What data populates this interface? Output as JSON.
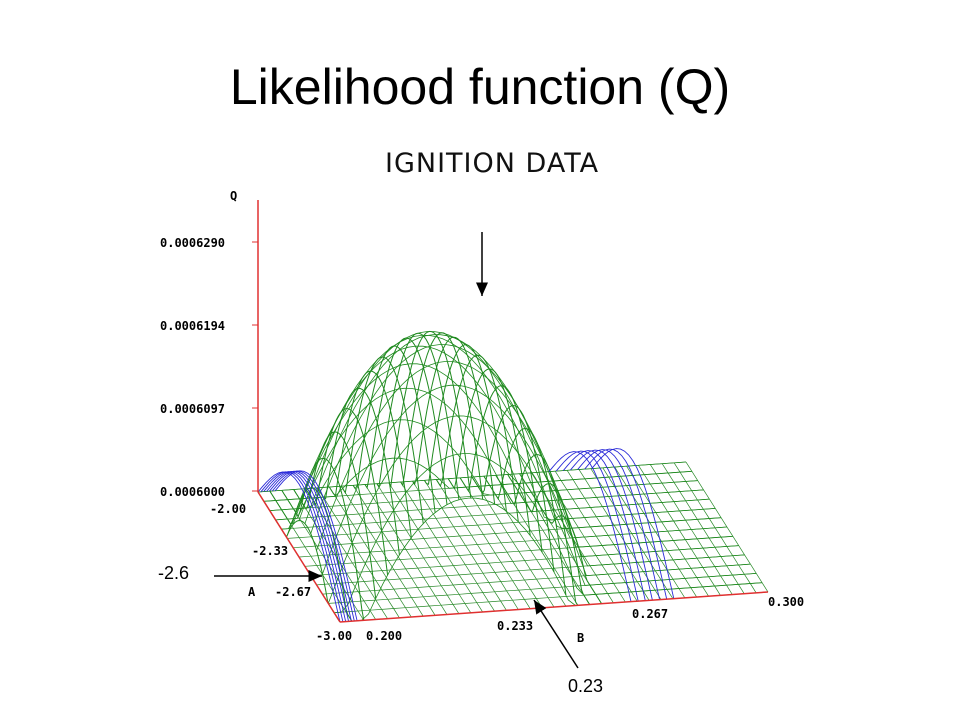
{
  "slide": {
    "title": "Likelihood function (Q)"
  },
  "chart_data": {
    "type": "surface3d",
    "title": "IGNITION DATA",
    "z_label": "Q",
    "x_label": "B",
    "y_label": "A",
    "z_ticks": [
      "0.0006290",
      "0.0006194",
      "0.0006097",
      "0.0006000"
    ],
    "z_tick_values": [
      0.000629,
      0.0006194,
      0.0006097,
      0.0006
    ],
    "a_ticks": [
      "-2.00",
      "-2.33",
      "-2.67",
      "-3.00"
    ],
    "a_tick_values": [
      -2.0,
      -2.33,
      -2.67,
      -3.0
    ],
    "b_ticks": [
      "0.200",
      "0.233",
      "0.267",
      "0.300"
    ],
    "b_tick_values": [
      0.2,
      0.233,
      0.267,
      0.3
    ],
    "zlim": [
      0.0006,
      0.000629
    ],
    "alim": [
      -3.0,
      -2.0
    ],
    "blim": [
      0.2,
      0.3
    ],
    "peak": {
      "A": -2.6,
      "B": 0.23,
      "Q": 0.000626
    },
    "surface_color": "#1f8a1f",
    "floor_color": "#2a8a2a",
    "below_color": "#2b2bd8",
    "axis_color": "#e03030",
    "annotations": [
      {
        "label": "-2.6",
        "points_to": "A"
      },
      {
        "label": "0.23",
        "points_to": "B"
      }
    ]
  }
}
